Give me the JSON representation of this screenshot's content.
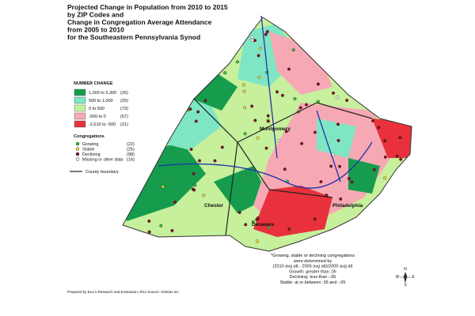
{
  "header": {
    "title": [
      "Projected Change in Population from 2010 to 2015",
      "by ZIP Codes and",
      "Change in Congregation Average Attendance",
      "from 2005 to 2010",
      "for the Southeastern Pennsylvania Synod"
    ]
  },
  "legend": {
    "heading": "NUMBER CHANGE",
    "items": [
      {
        "label": "1,000 to 3,300",
        "count": "(26)",
        "color": "#169c4c"
      },
      {
        "label": "500 to 1,000",
        "count": "(20)",
        "color": "#7ee6c4"
      },
      {
        "label": "0 to 500",
        "count": "(73)",
        "color": "#c6f09c"
      },
      {
        "label": "-500 to 0",
        "count": "(67)",
        "color": "#f6a9b4"
      },
      {
        "label": "-2,610 to -500",
        "count": "(21)",
        "color": "#e8313c"
      }
    ],
    "congregations": {
      "heading": "Congregations",
      "items": [
        {
          "label": "Growing",
          "count": "(22)",
          "color": "#3cc03c"
        },
        {
          "label": "Stable",
          "count": "(25)",
          "color": "#f0e040"
        },
        {
          "label": "Declining",
          "count": "(98)",
          "color": "#8a1020"
        },
        {
          "label": "Missing or other data",
          "count": "(14)",
          "color": "#ffffff"
        }
      ]
    },
    "boundary": "County boundary"
  },
  "places": [
    "Montgomery",
    "Chester",
    "Delaware",
    "Philadelphia"
  ],
  "note": [
    "*Growing, stable or declining congregations",
    "were determined by",
    "(2010 avg att - 2005 avg att)/2005 avg att",
    "Growth: greater than .05",
    "Declining: less than -.05",
    "Stable: at or between .05 and -.05"
  ],
  "footer": "Prepared by ELCA Research and Evaluation, 9/12 Source: Claritas Inc.",
  "compass": [
    "N",
    "E",
    "S",
    "W"
  ]
}
